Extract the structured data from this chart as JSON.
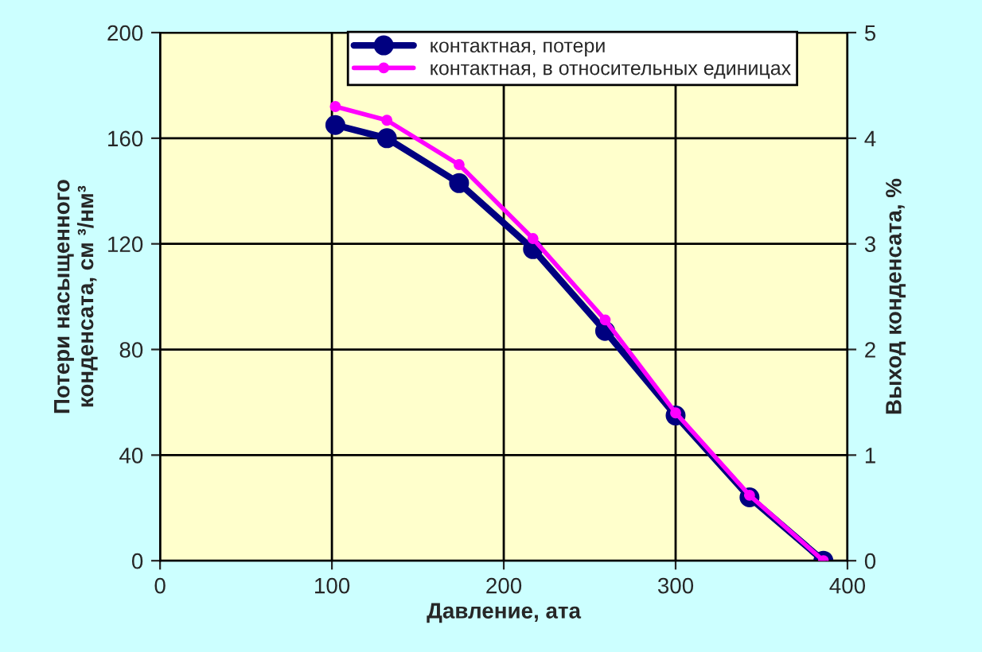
{
  "chart_data": {
    "type": "line",
    "xlabel": "Давление, ата",
    "ylabel": "Потери насыщенного\nконденсата, см ³/нм³",
    "y2label": "Выход конденсата, %",
    "x": [
      102,
      132,
      174,
      217,
      259,
      300,
      343,
      386
    ],
    "series": [
      {
        "name": "контактная, потери",
        "color": "#000080",
        "values": [
          165,
          160,
          143,
          118,
          87,
          55,
          24,
          0
        ]
      },
      {
        "name": "контактная, в относительных единицах",
        "color": "#ff00ff",
        "axis": "y2",
        "values": [
          4.3,
          4.17,
          3.75,
          3.05,
          2.28,
          1.4,
          0.62,
          0
        ]
      }
    ],
    "xlim": [
      0,
      400
    ],
    "xticks": [
      0,
      100,
      200,
      300,
      400
    ],
    "ylim": [
      0,
      200
    ],
    "yticks": [
      0,
      40,
      80,
      120,
      160,
      200
    ],
    "y2lim": [
      0,
      5
    ],
    "y2ticks": [
      0,
      1,
      2,
      3,
      4,
      5
    ],
    "grid": true,
    "legend": "top",
    "marker": "circle",
    "line_style": "solid"
  }
}
